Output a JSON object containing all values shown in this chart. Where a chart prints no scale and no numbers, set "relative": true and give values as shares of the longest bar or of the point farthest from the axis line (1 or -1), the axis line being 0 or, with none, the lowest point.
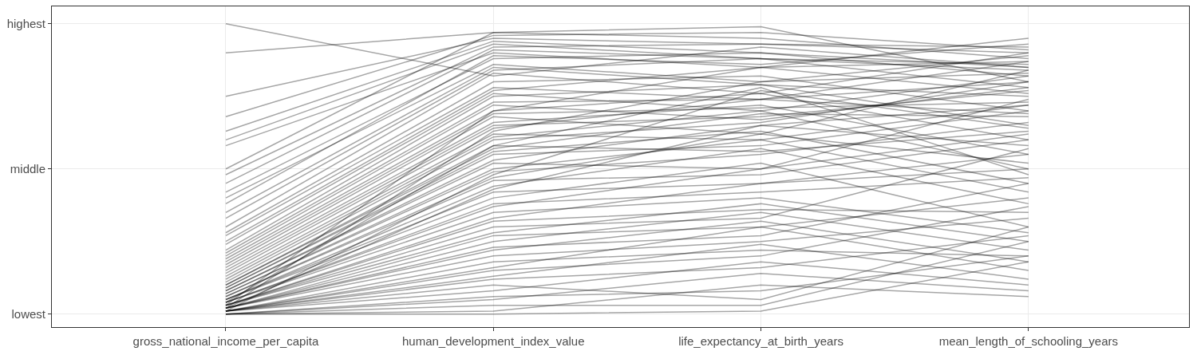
{
  "chart_data": {
    "type": "line",
    "categories": [
      "gross_national_income_per_capita",
      "human_development_index_value",
      "life_expectancy_at_birth_years",
      "mean_length_of_schooling_years"
    ],
    "relative": true,
    "grid": true,
    "annotations": [
      "lowest",
      "middle",
      "highest"
    ],
    "series": [
      {
        "color": "#000000",
        "values": [
          1.0,
          0.82,
          0.92,
          0.85
        ]
      },
      {
        "color": "#000000",
        "values": [
          0.9,
          0.97,
          0.95,
          0.88
        ]
      },
      {
        "color": "#000000",
        "values": [
          0.75,
          0.95,
          0.93,
          0.9
        ]
      },
      {
        "color": "#000000",
        "values": [
          0.68,
          0.96,
          0.97,
          0.91
        ]
      },
      {
        "color": "#000000",
        "values": [
          0.63,
          0.94,
          0.9,
          0.82
        ]
      },
      {
        "color": "#000000",
        "values": [
          0.6,
          0.93,
          0.88,
          0.86
        ]
      },
      {
        "color": "#000000",
        "values": [
          0.58,
          0.9,
          0.85,
          0.95
        ]
      },
      {
        "color": "#000000",
        "values": [
          0.5,
          0.97,
          0.99,
          0.8
        ]
      },
      {
        "color": "#000000",
        "values": [
          0.48,
          0.92,
          0.93,
          0.92
        ]
      },
      {
        "color": "#000000",
        "values": [
          0.45,
          0.91,
          0.88,
          0.78
        ]
      },
      {
        "color": "#000000",
        "values": [
          0.42,
          0.88,
          0.9,
          0.85
        ]
      },
      {
        "color": "#000000",
        "values": [
          0.4,
          0.86,
          0.8,
          0.89
        ]
      },
      {
        "color": "#000000",
        "values": [
          0.38,
          0.89,
          0.86,
          0.93
        ]
      },
      {
        "color": "#000000",
        "values": [
          0.35,
          0.85,
          0.79,
          0.75
        ]
      },
      {
        "color": "#000000",
        "values": [
          0.33,
          0.84,
          0.88,
          0.84
        ]
      },
      {
        "color": "#000000",
        "values": [
          0.3,
          0.83,
          0.76,
          0.9
        ]
      },
      {
        "color": "#000000",
        "values": [
          0.28,
          0.8,
          0.82,
          0.7
        ]
      },
      {
        "color": "#000000",
        "values": [
          0.27,
          0.78,
          0.74,
          0.87
        ]
      },
      {
        "color": "#000000",
        "values": [
          0.25,
          0.77,
          0.85,
          0.76
        ]
      },
      {
        "color": "#000000",
        "values": [
          0.24,
          0.76,
          0.7,
          0.82
        ]
      },
      {
        "color": "#000000",
        "values": [
          0.22,
          0.75,
          0.79,
          0.65
        ]
      },
      {
        "color": "#000000",
        "values": [
          0.21,
          0.73,
          0.74,
          0.8
        ]
      },
      {
        "color": "#000000",
        "values": [
          0.2,
          0.72,
          0.67,
          0.78
        ]
      },
      {
        "color": "#000000",
        "values": [
          0.19,
          0.7,
          0.76,
          0.6
        ]
      },
      {
        "color": "#000000",
        "values": [
          0.18,
          0.69,
          0.71,
          0.73
        ]
      },
      {
        "color": "#000000",
        "values": [
          0.17,
          0.68,
          0.62,
          0.84
        ]
      },
      {
        "color": "#000000",
        "values": [
          0.16,
          0.66,
          0.72,
          0.55
        ]
      },
      {
        "color": "#000000",
        "values": [
          0.15,
          0.65,
          0.68,
          0.77
        ]
      },
      {
        "color": "#000000",
        "values": [
          0.14,
          0.64,
          0.74,
          0.69
        ]
      },
      {
        "color": "#000000",
        "values": [
          0.13,
          0.62,
          0.6,
          0.72
        ]
      },
      {
        "color": "#000000",
        "values": [
          0.12,
          0.61,
          0.7,
          0.5
        ]
      },
      {
        "color": "#000000",
        "values": [
          0.11,
          0.6,
          0.66,
          0.8
        ]
      },
      {
        "color": "#000000",
        "values": [
          0.1,
          0.58,
          0.56,
          0.63
        ]
      },
      {
        "color": "#000000",
        "values": [
          0.1,
          0.57,
          0.69,
          0.68
        ]
      },
      {
        "color": "#000000",
        "values": [
          0.09,
          0.56,
          0.63,
          0.45
        ]
      },
      {
        "color": "#000000",
        "values": [
          0.09,
          0.55,
          0.58,
          0.7
        ]
      },
      {
        "color": "#000000",
        "values": [
          0.08,
          0.53,
          0.65,
          0.58
        ]
      },
      {
        "color": "#000000",
        "values": [
          0.08,
          0.52,
          0.5,
          0.74
        ]
      },
      {
        "color": "#000000",
        "values": [
          0.07,
          0.5,
          0.6,
          0.42
        ]
      },
      {
        "color": "#000000",
        "values": [
          0.07,
          0.49,
          0.55,
          0.66
        ]
      },
      {
        "color": "#000000",
        "values": [
          0.06,
          0.47,
          0.62,
          0.52
        ]
      },
      {
        "color": "#000000",
        "values": [
          0.06,
          0.46,
          0.48,
          0.6
        ]
      },
      {
        "color": "#000000",
        "values": [
          0.05,
          0.44,
          0.57,
          0.38
        ]
      },
      {
        "color": "#000000",
        "values": [
          0.05,
          0.42,
          0.45,
          0.55
        ]
      },
      {
        "color": "#000000",
        "values": [
          0.05,
          0.4,
          0.52,
          0.3
        ]
      },
      {
        "color": "#000000",
        "values": [
          0.04,
          0.38,
          0.42,
          0.47
        ]
      },
      {
        "color": "#000000",
        "values": [
          0.04,
          0.37,
          0.5,
          0.62
        ]
      },
      {
        "color": "#000000",
        "values": [
          0.04,
          0.35,
          0.4,
          0.28
        ]
      },
      {
        "color": "#000000",
        "values": [
          0.03,
          0.33,
          0.45,
          0.5
        ]
      },
      {
        "color": "#000000",
        "values": [
          0.03,
          0.32,
          0.36,
          0.35
        ]
      },
      {
        "color": "#000000",
        "values": [
          0.03,
          0.3,
          0.33,
          0.57
        ]
      },
      {
        "color": "#000000",
        "values": [
          0.03,
          0.28,
          0.38,
          0.25
        ]
      },
      {
        "color": "#000000",
        "values": [
          0.02,
          0.27,
          0.3,
          0.4
        ]
      },
      {
        "color": "#000000",
        "values": [
          0.02,
          0.25,
          0.35,
          0.22
        ]
      },
      {
        "color": "#000000",
        "values": [
          0.02,
          0.23,
          0.27,
          0.45
        ]
      },
      {
        "color": "#000000",
        "values": [
          0.02,
          0.22,
          0.32,
          0.18
        ]
      },
      {
        "color": "#000000",
        "values": [
          0.02,
          0.2,
          0.25,
          0.33
        ]
      },
      {
        "color": "#000000",
        "values": [
          0.01,
          0.18,
          0.22,
          0.2
        ]
      },
      {
        "color": "#000000",
        "values": [
          0.01,
          0.16,
          0.3,
          0.15
        ]
      },
      {
        "color": "#000000",
        "values": [
          0.01,
          0.15,
          0.2,
          0.37
        ]
      },
      {
        "color": "#000000",
        "values": [
          0.01,
          0.13,
          0.24,
          0.12
        ]
      },
      {
        "color": "#000000",
        "values": [
          0.01,
          0.12,
          0.16,
          0.27
        ]
      },
      {
        "color": "#000000",
        "values": [
          0.01,
          0.1,
          0.05,
          0.3
        ]
      },
      {
        "color": "#000000",
        "values": [
          0.01,
          0.08,
          0.18,
          0.1
        ]
      },
      {
        "color": "#000000",
        "values": [
          0.0,
          0.06,
          0.08,
          0.2
        ]
      },
      {
        "color": "#000000",
        "values": [
          0.0,
          0.05,
          0.14,
          0.08
        ]
      },
      {
        "color": "#000000",
        "values": [
          0.0,
          0.03,
          0.03,
          0.25
        ]
      },
      {
        "color": "#000000",
        "values": [
          0.0,
          0.01,
          0.1,
          0.06
        ]
      },
      {
        "color": "#000000",
        "values": [
          0.0,
          0.0,
          0.01,
          0.18
        ]
      },
      {
        "color": "#000000",
        "values": [
          0.02,
          0.63,
          0.8,
          0.83
        ]
      },
      {
        "color": "#000000",
        "values": [
          0.03,
          0.7,
          0.85,
          0.87
        ]
      },
      {
        "color": "#000000",
        "values": [
          0.01,
          0.48,
          0.77,
          0.64
        ]
      },
      {
        "color": "#000000",
        "values": [
          0.04,
          0.58,
          0.78,
          0.48
        ]
      },
      {
        "color": "#000000",
        "values": [
          0.02,
          0.43,
          0.65,
          0.72
        ]
      }
    ]
  }
}
